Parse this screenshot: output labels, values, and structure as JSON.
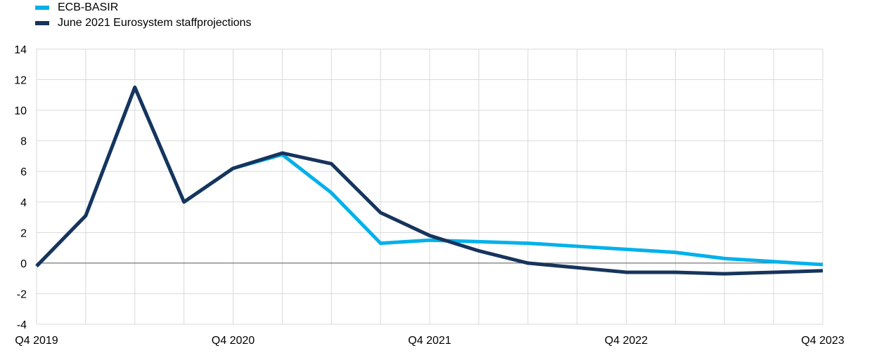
{
  "chart_data": {
    "type": "line",
    "title": "",
    "xlabel": "",
    "ylabel": "",
    "ylim": [
      -4,
      14
    ],
    "yticks": [
      -4,
      -2,
      0,
      2,
      4,
      6,
      8,
      10,
      12,
      14
    ],
    "grid": true,
    "legend_position": "top-left",
    "x": [
      "Q4 2019",
      "Q1 2020",
      "Q2 2020",
      "Q3 2020",
      "Q4 2020",
      "Q1 2021",
      "Q2 2021",
      "Q3 2021",
      "Q4 2021",
      "Q1 2022",
      "Q2 2022",
      "Q3 2022",
      "Q4 2022",
      "Q1 2023",
      "Q2 2023",
      "Q3 2023",
      "Q4 2023"
    ],
    "xtick_labels": [
      "Q4 2019",
      "Q4 2020",
      "Q4 2021",
      "Q4 2022",
      "Q4 2023"
    ],
    "series": [
      {
        "name": "ECB-BASIR",
        "color": "#00b1ea",
        "values": [
          -0.2,
          3.1,
          11.5,
          4.0,
          6.2,
          7.1,
          4.6,
          1.3,
          1.5,
          1.4,
          1.3,
          1.1,
          0.9,
          0.7,
          0.3,
          0.1,
          -0.1
        ]
      },
      {
        "name": "June 2021 Eurosystem staffprojections",
        "color": "#17345c",
        "values": [
          -0.2,
          3.1,
          11.5,
          4.0,
          6.2,
          7.2,
          6.5,
          3.3,
          1.8,
          0.8,
          0.0,
          -0.3,
          -0.6,
          -0.6,
          -0.7,
          -0.6,
          -0.5
        ]
      }
    ]
  }
}
